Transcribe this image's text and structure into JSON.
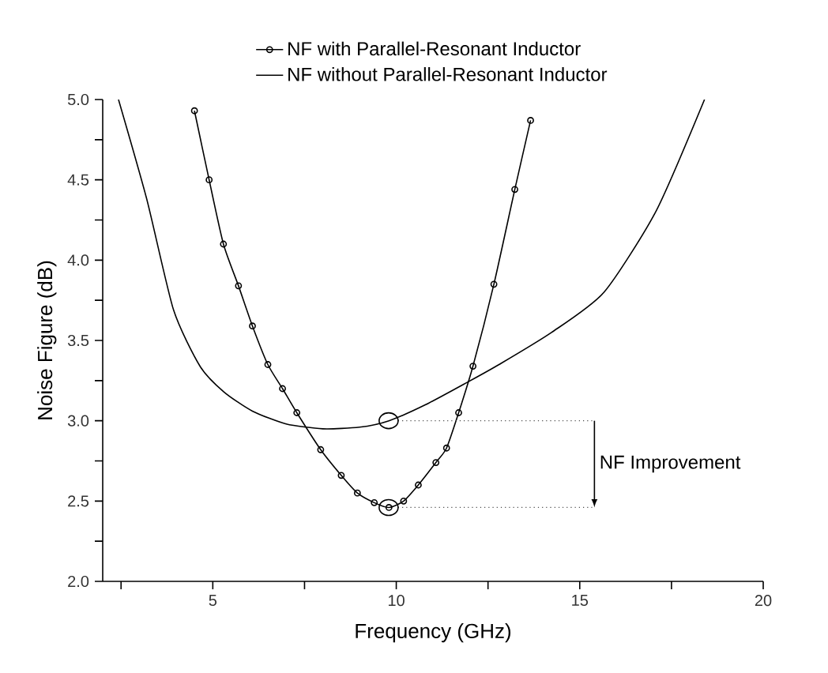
{
  "chart_data": {
    "type": "line",
    "xlabel": "Frequency (GHz)",
    "ylabel": "Noise Figure (dB)",
    "xlim": [
      2,
      20
    ],
    "ylim": [
      2.0,
      5.0
    ],
    "xticks": [
      {
        "value": 2.5,
        "label": null
      },
      5,
      {
        "value": 7.5,
        "label": null
      },
      10,
      {
        "value": 12.5,
        "label": null
      },
      15,
      {
        "value": 17.5,
        "label": null
      },
      20
    ],
    "yticks": [
      {
        "value": 2.0,
        "label": "2.0"
      },
      {
        "value": 2.25,
        "label": null
      },
      {
        "value": 2.5,
        "label": "2.5"
      },
      {
        "value": 2.75,
        "label": null
      },
      {
        "value": 3.0,
        "label": "3.0"
      },
      {
        "value": 3.25,
        "label": null
      },
      {
        "value": 3.5,
        "label": "3.5"
      },
      {
        "value": 3.75,
        "label": null
      },
      {
        "value": 4.0,
        "label": "4.0"
      },
      {
        "value": 4.25,
        "label": null
      },
      {
        "value": 4.5,
        "label": "4.5"
      },
      {
        "value": 4.75,
        "label": null
      },
      {
        "value": 5.0,
        "label": "5.0"
      }
    ],
    "legend": "top",
    "grid": false,
    "series": [
      {
        "name": "NF with Parallel-Resonant Inductor",
        "color": "#000000",
        "marker": "circle",
        "x": [
          4.5,
          4.9,
          5.29,
          5.7,
          6.08,
          6.5,
          6.9,
          7.29,
          7.94,
          8.5,
          8.94,
          9.4,
          9.8,
          10.2,
          10.6,
          11.08,
          11.37,
          11.7,
          12.09,
          12.66,
          13.23,
          13.66
        ],
        "values": [
          4.93,
          4.5,
          4.1,
          3.84,
          3.59,
          3.35,
          3.2,
          3.05,
          2.82,
          2.66,
          2.55,
          2.49,
          2.46,
          2.5,
          2.6,
          2.74,
          2.83,
          3.05,
          3.34,
          3.85,
          4.44,
          4.87
        ]
      },
      {
        "name": "NF without Parallel-Resonant Inductor",
        "color": "#000000",
        "marker": "none",
        "x": [
          2.43,
          3.2,
          3.93,
          4.65,
          5.3,
          6.08,
          7.0,
          8.0,
          9.0,
          9.8,
          10.8,
          11.94,
          12.8,
          14.23,
          15.66,
          17.09,
          18.4
        ],
        "values": [
          5.0,
          4.38,
          3.69,
          3.34,
          3.18,
          3.06,
          2.98,
          2.95,
          2.96,
          3.0,
          3.1,
          3.24,
          3.35,
          3.55,
          3.8,
          4.31,
          5.0
        ]
      },
      {
        "color": "#4c4c4c",
        "marker": "none",
        "line_style": "dotted",
        "x": [
          10.05,
          15.4
        ],
        "values": [
          3.0,
          3.0
        ]
      },
      {
        "color": "#4c4c4c",
        "marker": "none",
        "line_style": "dotted",
        "x": [
          10.05,
          15.4
        ],
        "values": [
          2.46,
          2.46
        ]
      }
    ],
    "annotations": [
      "NF Improvement"
    ]
  }
}
